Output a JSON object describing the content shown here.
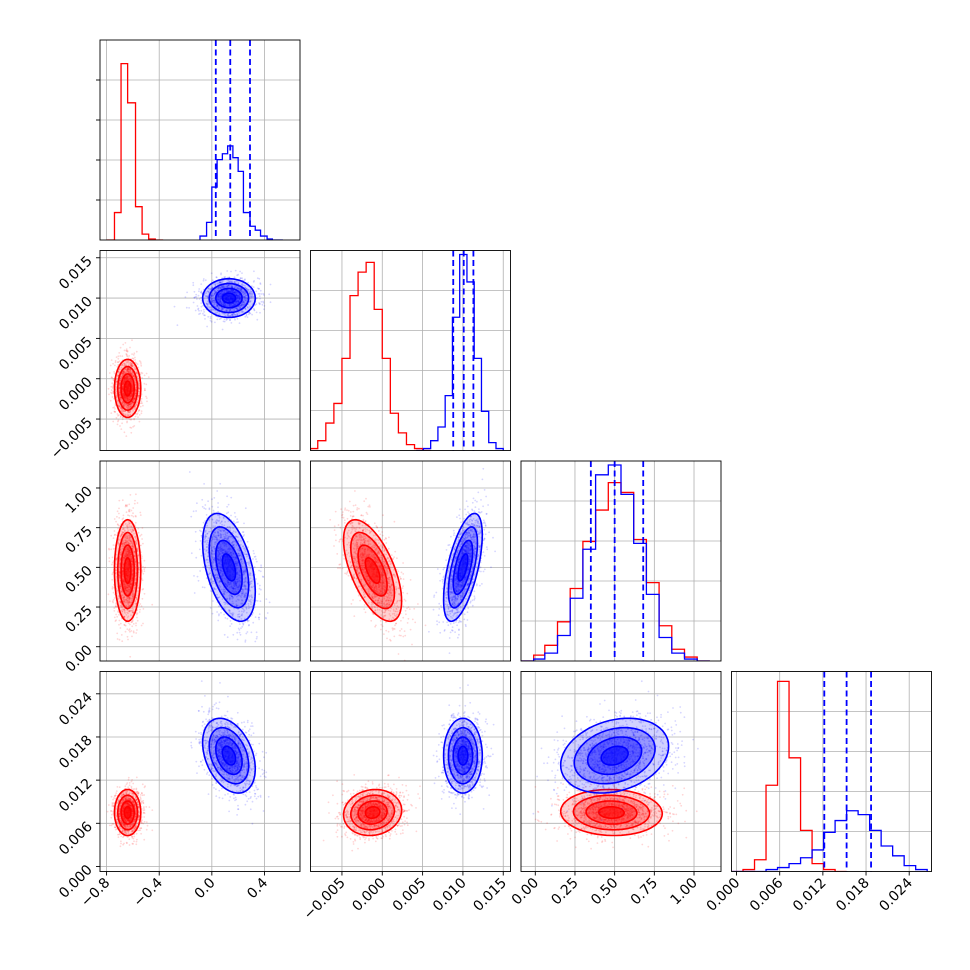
{
  "chart_data": {
    "type": "corner",
    "grid": true,
    "parameters": [
      {
        "ticks": [
          -0.8,
          -0.4,
          0.0,
          0.4
        ],
        "tick_labels": [
          "−0.8",
          "−0.4",
          "0.0",
          "0.4"
        ],
        "range": [
          -0.85,
          0.67
        ]
      },
      {
        "ticks": [
          -0.005,
          0.0,
          0.005,
          0.01,
          0.015
        ],
        "tick_labels": [
          "−0.005",
          "0.000",
          "0.005",
          "0.010",
          "0.015"
        ],
        "range": [
          -0.0089,
          0.0159
        ]
      },
      {
        "ticks": [
          0.0,
          0.25,
          0.5,
          0.75,
          1.0
        ],
        "tick_labels": [
          "0.00",
          "0.25",
          "0.50",
          "0.75",
          "1.00"
        ],
        "range": [
          -0.09,
          1.17
        ]
      },
      {
        "ticks": [
          0.0,
          0.006,
          0.012,
          0.018,
          0.024
        ],
        "tick_labels": [
          "0.000",
          "0.006",
          "0.012",
          "0.018",
          "0.024"
        ],
        "range": [
          -0.0007,
          0.0271
        ]
      }
    ],
    "series": [
      {
        "color": "#ff0000",
        "means": [
          -0.64,
          -0.0012,
          0.48,
          0.0075
        ],
        "sds": [
          0.05,
          0.0018,
          0.16,
          0.0016
        ],
        "correlations": [
          [
            1,
            3,
            0.1
          ],
          [
            2,
            3,
            -0.05
          ],
          [
            1,
            2,
            -0.6
          ]
        ],
        "histograms": [
          {
            "edges": [
              -0.8,
              -0.74,
              -0.69,
              -0.64,
              -0.58,
              -0.53,
              -0.48,
              -0.43,
              -0.37
            ],
            "counts": [
              0.0,
              0.14,
              0.9,
              0.7,
              0.17,
              0.03,
              0.005,
              0.0
            ]
          },
          {
            "edges": [
              -0.0089,
              -0.008,
              -0.007,
              -0.006,
              -0.005,
              -0.004,
              -0.003,
              -0.002,
              -0.001,
              0.0,
              0.001,
              0.002,
              0.003,
              0.004,
              0.005,
              0.006
            ],
            "counts": [
              0.01,
              0.05,
              0.14,
              0.24,
              0.47,
              0.79,
              0.91,
              0.96,
              0.72,
              0.47,
              0.19,
              0.09,
              0.03,
              0.01,
              0.0
            ]
          },
          {
            "edges": [
              -0.09,
              -0.01,
              0.06,
              0.14,
              0.22,
              0.3,
              0.38,
              0.46,
              0.54,
              0.62,
              0.7,
              0.78,
              0.86,
              0.94,
              1.02,
              1.1
            ],
            "counts": [
              0.0,
              0.03,
              0.08,
              0.2,
              0.37,
              0.61,
              0.77,
              0.91,
              0.86,
              0.62,
              0.4,
              0.18,
              0.06,
              0.02,
              0.0
            ]
          },
          {
            "edges": [
              -0.0007,
              0.0009,
              0.0025,
              0.0041,
              0.0057,
              0.0073,
              0.0089,
              0.0105,
              0.0121,
              0.0137,
              0.0153
            ],
            "counts": [
              0.0,
              0.01,
              0.06,
              0.44,
              0.97,
              0.58,
              0.21,
              0.04,
              0.01,
              0.0
            ]
          }
        ]
      },
      {
        "color": "#0000ff",
        "means": [
          0.13,
          0.01,
          0.5,
          0.0154
        ],
        "sds": [
          0.1,
          0.0012,
          0.17,
          0.0026
        ],
        "correlations": [
          [
            0,
            2,
            -0.45
          ],
          [
            0,
            3,
            -0.35
          ],
          [
            1,
            2,
            0.6
          ],
          [
            2,
            3,
            0.25
          ]
        ],
        "quantiles": [
          [
            0.03,
            0.14,
            0.29
          ],
          [
            0.0088,
            0.0101,
            0.0113
          ],
          [
            0.35,
            0.5,
            0.68
          ],
          [
            0.0122,
            0.0153,
            0.0187
          ]
        ],
        "histograms": [
          {
            "edges": [
              -0.09,
              -0.04,
              0.0,
              0.04,
              0.08,
              0.12,
              0.16,
              0.2,
              0.24,
              0.29,
              0.33,
              0.37,
              0.42,
              0.46,
              0.5,
              0.54
            ],
            "counts": [
              0.02,
              0.09,
              0.27,
              0.41,
              0.44,
              0.48,
              0.42,
              0.35,
              0.14,
              0.07,
              0.05,
              0.02,
              0.005,
              0.0,
              0.0
            ]
          },
          {
            "edges": [
              0.0042,
              0.0051,
              0.006,
              0.0069,
              0.0078,
              0.0087,
              0.0096,
              0.0105,
              0.0114,
              0.0123,
              0.0132,
              0.0141,
              0.015
            ],
            "counts": [
              0.0,
              0.01,
              0.05,
              0.12,
              0.28,
              0.68,
              1.0,
              0.86,
              0.47,
              0.2,
              0.04,
              0.01
            ]
          },
          {
            "edges": [
              -0.09,
              -0.01,
              0.06,
              0.14,
              0.22,
              0.3,
              0.38,
              0.46,
              0.54,
              0.62,
              0.7,
              0.78,
              0.86,
              0.94,
              1.02,
              1.1
            ],
            "counts": [
              0.0,
              0.01,
              0.04,
              0.13,
              0.32,
              0.57,
              0.95,
              1.0,
              0.85,
              0.6,
              0.34,
              0.12,
              0.04,
              0.01,
              0.0
            ]
          },
          {
            "edges": [
              -0.0007,
              0.0009,
              0.0025,
              0.0041,
              0.0057,
              0.0073,
              0.0089,
              0.0105,
              0.0121,
              0.0137,
              0.0153,
              0.0169,
              0.0185,
              0.0201,
              0.0217,
              0.0233,
              0.0249,
              0.0265
            ],
            "counts": [
              0.0,
              0.0,
              0.0,
              0.01,
              0.02,
              0.04,
              0.07,
              0.11,
              0.2,
              0.26,
              0.31,
              0.29,
              0.21,
              0.13,
              0.08,
              0.03,
              0.01
            ]
          }
        ]
      }
    ]
  }
}
